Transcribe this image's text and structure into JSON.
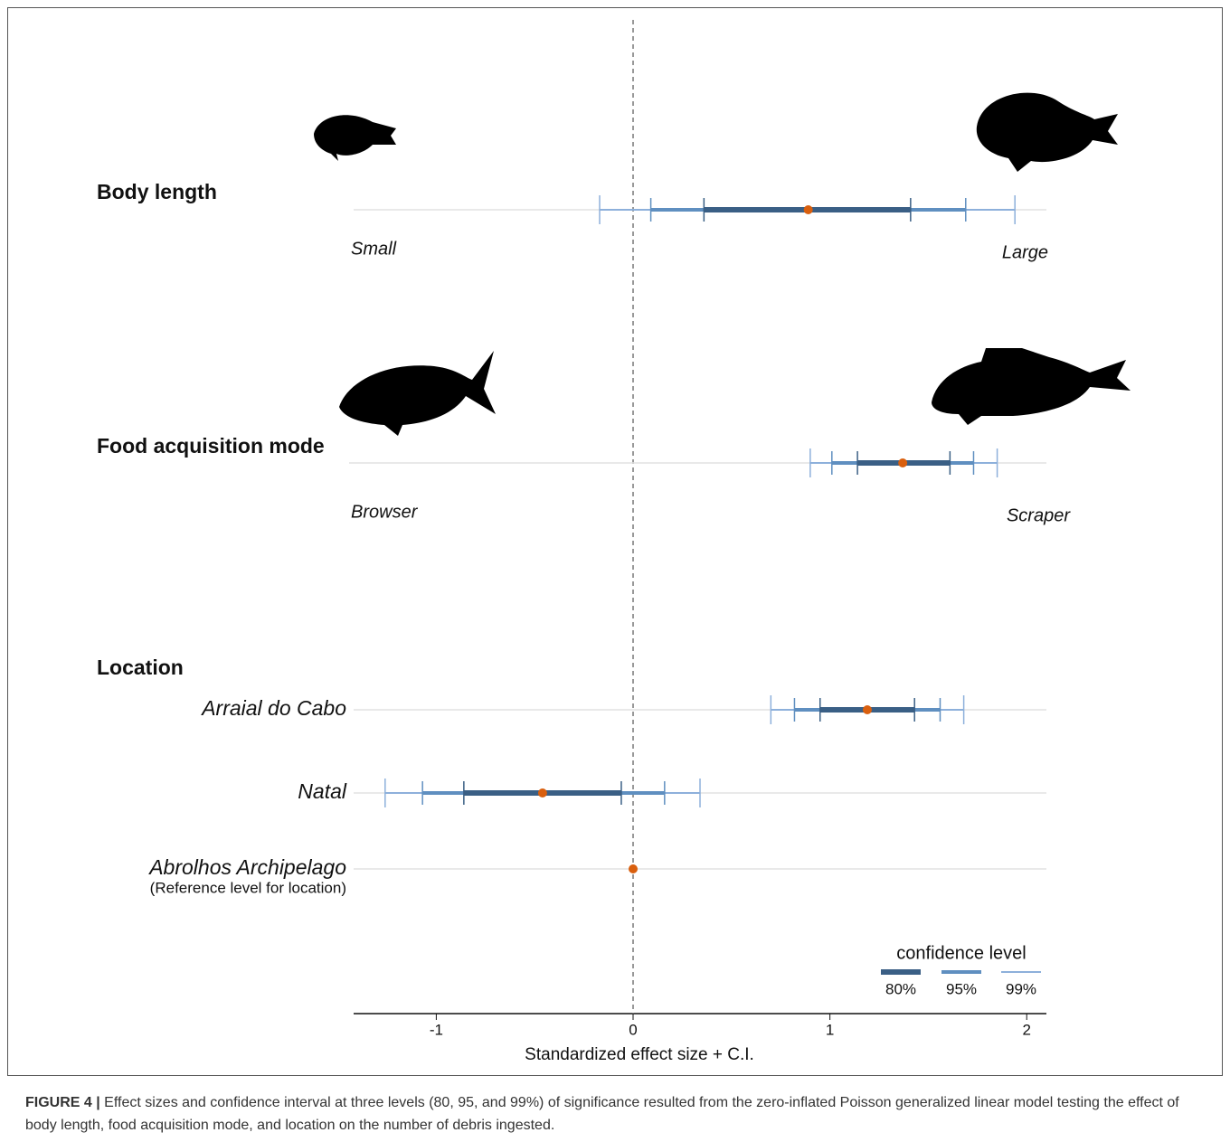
{
  "chart_data": {
    "type": "interval",
    "x_label": "Standardized effect size + C.I.",
    "xlim": [
      -1.42,
      2.1
    ],
    "xticks": [
      -1,
      0,
      1,
      2
    ],
    "ref_line": 0,
    "point_color": "#d95f0e",
    "legend_title": "confidence level",
    "levels": [
      {
        "name": "80%",
        "color": "#3a5f85"
      },
      {
        "name": "95%",
        "color": "#5f8fc0"
      },
      {
        "name": "99%",
        "color": "#8db0db"
      }
    ],
    "groups": [
      {
        "title": "Body length",
        "low_label": "Small",
        "high_label": "Large",
        "rows": [
          {
            "estimate": 0.89,
            "intervals": [
              [
                0.36,
                1.41
              ],
              [
                0.09,
                1.69
              ],
              [
                -0.17,
                1.94
              ]
            ]
          }
        ]
      },
      {
        "title": "Food acquisition mode",
        "low_label": "Browser",
        "high_label": "Scraper",
        "rows": [
          {
            "estimate": 1.37,
            "intervals": [
              [
                1.14,
                1.61
              ],
              [
                1.01,
                1.73
              ],
              [
                0.9,
                1.85
              ]
            ]
          }
        ]
      },
      {
        "title": "Location",
        "rows": [
          {
            "label": "Arraial do Cabo",
            "estimate": 1.19,
            "intervals": [
              [
                0.95,
                1.43
              ],
              [
                0.82,
                1.56
              ],
              [
                0.7,
                1.68
              ]
            ]
          },
          {
            "label": "Natal",
            "estimate": -0.46,
            "intervals": [
              [
                -0.86,
                -0.06
              ],
              [
                -1.07,
                0.16
              ],
              [
                -1.26,
                0.34
              ]
            ]
          },
          {
            "label": "Abrolhos Archipelago",
            "sublabel": "(Reference level for location)",
            "estimate": 0
          }
        ]
      }
    ]
  },
  "caption": {
    "label": "FIGURE 4 |",
    "text": "Effect sizes and confidence interval at three levels (80, 95, and 99%) of significance resulted from the zero-inflated Poisson generalized linear model testing the effect of body length, food acquisition mode, and location on the number of debris ingested."
  }
}
